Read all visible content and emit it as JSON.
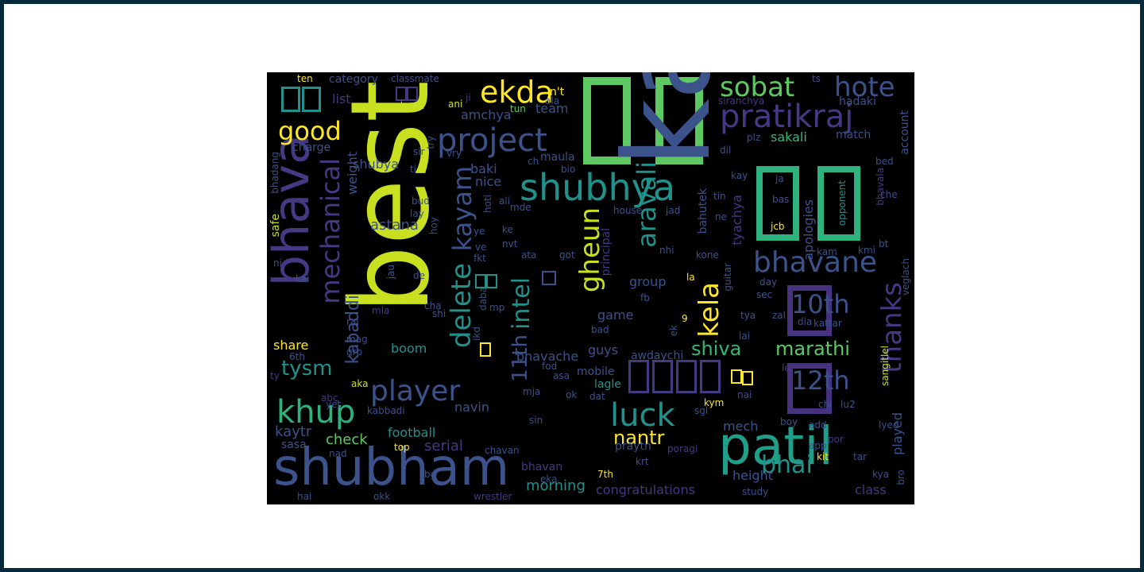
{
  "colors": {
    "lime": "#c8e020",
    "yellow": "#fde725",
    "green": "#5ec962",
    "teal": "#21918c",
    "teal2": "#1f9e89",
    "blue": "#3b528b",
    "indigo": "#443983",
    "purple": "#46327e",
    "dark": "#482475",
    "aqua": "#35b779",
    "seafoam": "#2db27d"
  },
  "words": {
    "best": "best",
    "ka": "ka",
    "bhava": "bhava",
    "shubham": "shubham",
    "patil": "patil",
    "shubhya": "shubhya",
    "project": "project",
    "pratikraj": "pratikraj",
    "ekda": "ekda",
    "sobat": "sobat",
    "hote": "hote",
    "good": "good",
    "mechanical": "mechanical",
    "delete": "delete",
    "kayam": "kayam",
    "gheun": "gheun",
    "kela": "kela",
    "aravali": "aravali",
    "android": "android",
    "adnavachi": "adnavachi",
    "upadhye": "upadhye",
    "bhavane": "bhavane",
    "10th": "10th",
    "12th": "12th",
    "thanks": "thanks",
    "player": "player",
    "khup": "khup",
    "luck": "luck",
    "bhai": "bhai",
    "intel": "intel",
    "11th": "11th",
    "shiva": "shiva",
    "marathi": "marathi",
    "nantr": "nantr",
    "tysm": "tysm",
    "kabaddi": "kabaddi",
    "weight": "weight",
    "astana": "astana",
    "amchya": "amchya",
    "team": "team",
    "list": "list",
    "category": "category",
    "classmate": "classmate",
    "ten": "ten",
    "mhnun": "mhnun",
    "ani": "ani",
    "ji": "ji",
    "nt": "n't",
    "ala": "ala",
    "tun": "tun",
    "ts": "ts",
    "hadaki": "hadaki",
    "siranchya": "siranchya",
    "account": "account",
    "match": "match",
    "sakali": "sakali",
    "apologies": "apologies",
    "tyachya": "tyachya",
    "bahutek": "bahutek",
    "opponent": "opponent",
    "ja": "ja",
    "bas": "bas",
    "jcb": "jcb",
    "che": "che",
    "bhavala": "bhavala",
    "bed": "bed",
    "dil": "dil",
    "plz": "plz",
    "kay": "kay",
    "tin": "tin",
    "ne": "ne",
    "jad": "jad",
    "house": "house",
    "nhi": "nhi",
    "kone": "kone",
    "principal": "principal",
    "guitar": "guitar",
    "la": "la",
    "group": "group",
    "game": "game",
    "bad": "bad",
    "guys": "guys",
    "bhavache": "bhavache",
    "awdaychi": "awdaychi",
    "mobile": "mobile",
    "lagle": "lagle",
    "dat": "dat",
    "ok": "ok",
    "fod": "fod",
    "asa": "asa",
    "mja": "mja",
    "sin": "sin",
    "kabbadi": "kabbadi",
    "football": "football",
    "navin": "navin",
    "serial": "serial",
    "top": "top",
    "chavan": "chavan",
    "bhavan": "bhavan",
    "eka": "eka",
    "7th": "7th",
    "morning": "morning",
    "congratulations": "congratulations",
    "praytn": "praytn",
    "poragi": "poragi",
    "krt": "krt",
    "height": "height",
    "study": "study",
    "class": "class",
    "played": "played",
    "bro": "bro",
    "kya": "kya",
    "tar": "tar",
    "kit": "kit",
    "lu2": "lu2",
    "chi": "chi",
    "boy": "boy",
    "add": "add",
    "app": "app",
    "por": "por",
    "nai": "nai",
    "mech": "mech",
    "kym": "kym",
    "sgl": "sgl",
    "check": "check",
    "kaytr": "kaytr",
    "sasa": "sasa",
    "nad": "nad",
    "bg": "bg",
    "okk": "okk",
    "hai": "hai",
    "wrestler": "wrestler",
    "share": "share",
    "6th": "6th",
    "grp": "grp",
    "boom": "boom",
    "raj": "raj",
    "mag": "mag",
    "ikd": "ikd",
    "daba": "daba",
    "mp": "mp",
    "shi": "shi",
    "cha": "cha",
    "mla": "mla",
    "aka": "aka",
    "yet": "yet",
    "abc": "abc",
    "ty": "ty",
    "kai": "kai",
    "ni": "ni",
    "safe": "safe",
    "bhadang": "bhadang",
    "charge": "charge",
    "shubya": "shubya",
    "baki": "baki",
    "nice": "nice",
    "maula": "maula",
    "bio": "bio",
    "ch": "ch",
    "ti": "ti",
    "vry": "vry",
    "try": "try",
    "sir": "sir",
    "bud": "bud",
    "lay": "lay",
    "hoy": "hoy",
    "hoti": "hoti",
    "ali": "ali",
    "mde": "mde",
    "ke": "ke",
    "ye": "ye",
    "nvt": "nvt",
    "ve": "ve",
    "fkt": "fkt",
    "ata": "ata",
    "got": "got",
    "jau": "jau",
    "de": "de",
    "fb": "fb",
    "ek": "ek",
    "kam": "kam",
    "kmi": "kmi",
    "bt": "bt",
    "day": "day",
    "sec": "sec",
    "veglach": "veglach",
    "kattar": "kattar",
    "dia": "dia",
    "tya": "tya",
    "zal": "zal",
    "lai": "lai",
    "le": "le",
    "sangitlel": "sangitlel",
    "lyed": "lyed",
    "9": "9"
  }
}
